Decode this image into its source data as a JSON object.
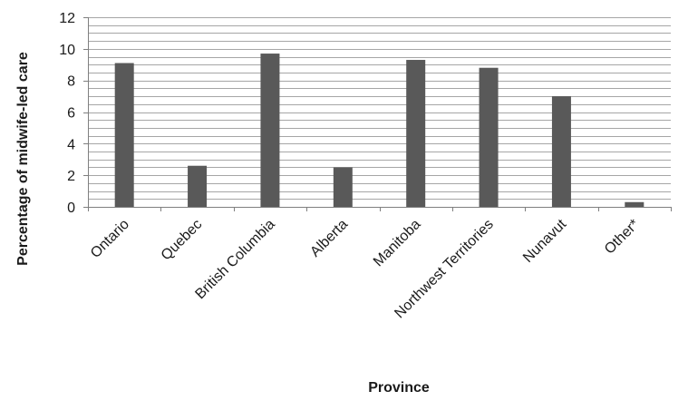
{
  "chart_data": {
    "type": "bar",
    "title": "",
    "xlabel": "Province",
    "ylabel": "Percentage of midwife-led care",
    "ylim": [
      0,
      12
    ],
    "yticks": [
      0,
      2,
      4,
      6,
      8,
      10,
      12
    ],
    "minor_grid_step": 0.5,
    "grid": true,
    "legend": "none",
    "categories": [
      "Ontario",
      "Quebec",
      "British Columbia",
      "Alberta",
      "Manitoba",
      "Northwest Territories",
      "Nunavut",
      "Other*"
    ],
    "values": [
      9.1,
      2.6,
      9.7,
      2.5,
      9.3,
      8.8,
      7.0,
      0.3
    ],
    "colors": {
      "bar": "#595959",
      "grid": "#a6a6a6",
      "axis": "#7f7f7f"
    }
  }
}
